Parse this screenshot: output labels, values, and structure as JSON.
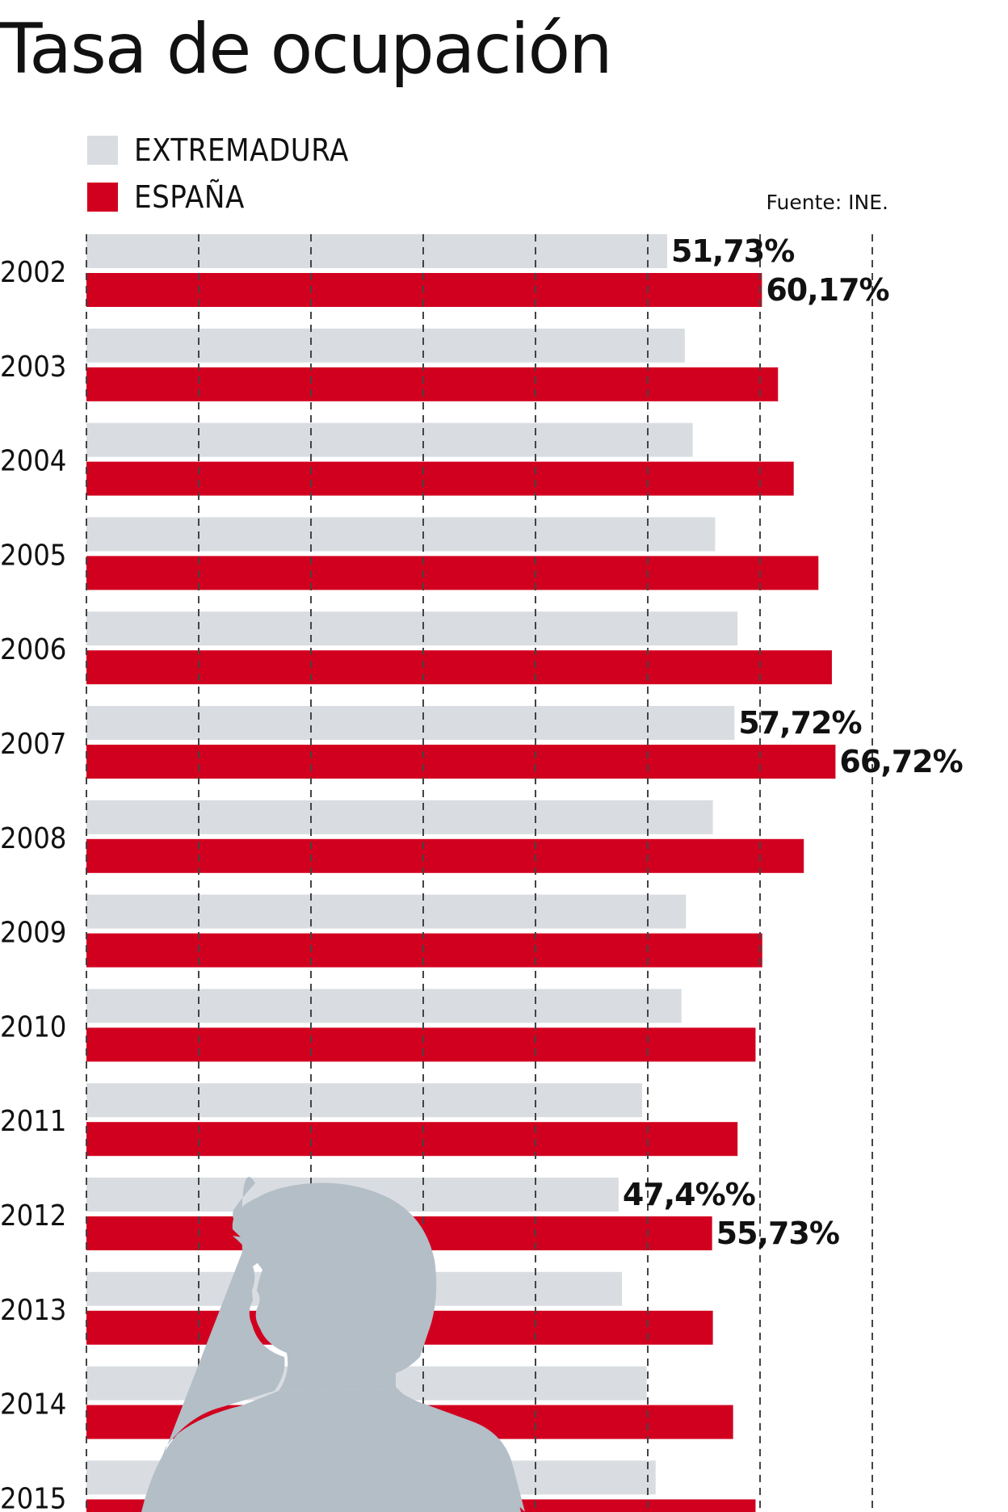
{
  "title": "Tasa de ocupación",
  "source": "Fuente: INE.",
  "colors": {
    "extremadura": "#d9dde1",
    "espana": "#d2001f",
    "silhouette": "#b3bec7",
    "grid": "#444444"
  },
  "legend": [
    {
      "label": "EXTREMADURA",
      "color": "#d9dde1"
    },
    {
      "label": "ESPAÑA",
      "color": "#d2001f"
    }
  ],
  "chart_data": {
    "type": "bar",
    "orientation": "horizontal",
    "categories": [
      "2002",
      "2003",
      "2004",
      "2005",
      "2006",
      "2007",
      "2008",
      "2009",
      "2010",
      "2011",
      "2012",
      "2013",
      "2014",
      "2015"
    ],
    "series": [
      {
        "name": "EXTREMADURA",
        "values": [
          51.73,
          53.3,
          54.0,
          56.0,
          58.0,
          57.72,
          55.8,
          53.4,
          53.0,
          49.5,
          47.4,
          47.7,
          49.9,
          50.7
        ]
      },
      {
        "name": "ESPAÑA",
        "values": [
          60.17,
          61.6,
          63.0,
          65.2,
          66.4,
          66.72,
          63.9,
          60.2,
          59.6,
          58.0,
          55.73,
          55.8,
          57.6,
          59.6
        ]
      }
    ],
    "data_labels": [
      {
        "category": "2002",
        "series": "EXTREMADURA",
        "text": "51,73%"
      },
      {
        "category": "2002",
        "series": "ESPAÑA",
        "text": "60,17%"
      },
      {
        "category": "2007",
        "series": "EXTREMADURA",
        "text": "57,72%"
      },
      {
        "category": "2007",
        "series": "ESPAÑA",
        "text": "66,72%"
      },
      {
        "category": "2012",
        "series": "EXTREMADURA",
        "text": "47,4%%"
      },
      {
        "category": "2012",
        "series": "ESPAÑA",
        "text": "55,73%"
      }
    ],
    "xlim": [
      0,
      70
    ],
    "grid": true,
    "grid_step": 10,
    "axis_labels_visible": false
  }
}
